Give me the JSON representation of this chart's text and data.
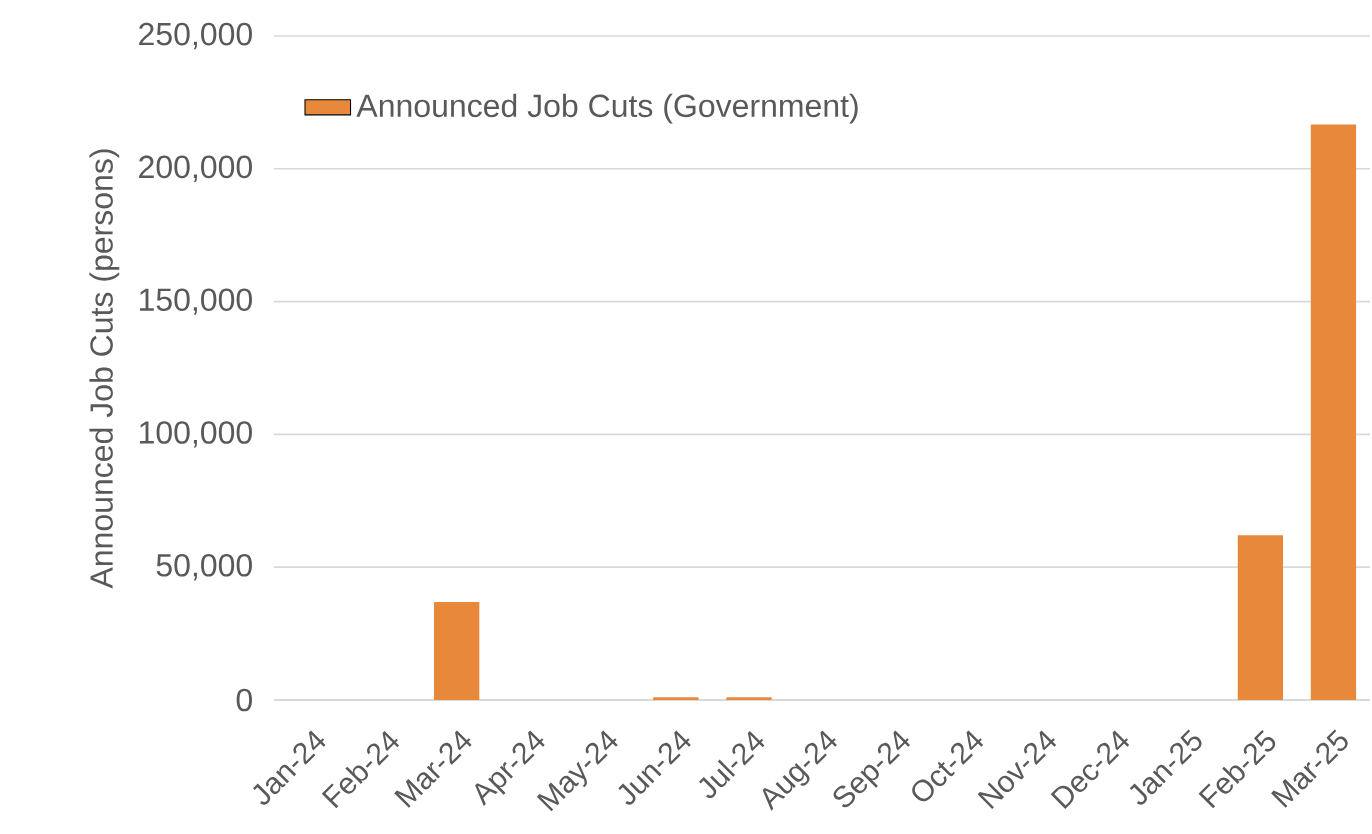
{
  "chart_data": {
    "type": "bar",
    "ylabel": "Announced Job Cuts (persons)",
    "categories": [
      "Jan-24",
      "Feb-24",
      "Mar-24",
      "Apr-24",
      "May-24",
      "Jun-24",
      "Jul-24",
      "Aug-24",
      "Sep-24",
      "Oct-24",
      "Nov-24",
      "Dec-24",
      "Jan-25",
      "Feb-25",
      "Mar-25"
    ],
    "series": [
      {
        "name": "Announced Job Cuts (Government)",
        "color": "#e8883a",
        "values": [
          0,
          0,
          36900,
          0,
          0,
          1000,
          1000,
          0,
          0,
          0,
          0,
          0,
          0,
          62000,
          216700
        ]
      }
    ],
    "ylim": [
      0,
      250000
    ],
    "yticks": [
      {
        "value": 0,
        "label": "0"
      },
      {
        "value": 50000,
        "label": "50,000"
      },
      {
        "value": 100000,
        "label": "100,000"
      },
      {
        "value": 150000,
        "label": "150,000"
      },
      {
        "value": 200000,
        "label": "200,000"
      },
      {
        "value": 250000,
        "label": "250,000"
      }
    ],
    "grid": "y",
    "legend": "top left"
  }
}
